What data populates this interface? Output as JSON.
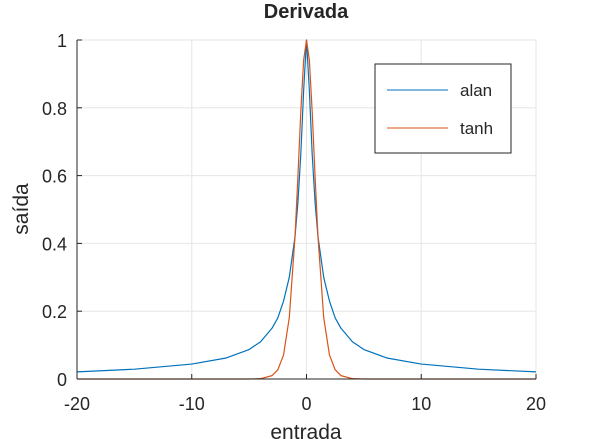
{
  "chart_data": {
    "type": "line",
    "title": "Derivada",
    "xlabel": "entrada",
    "ylabel": "saída",
    "xlim": [
      -20,
      20
    ],
    "ylim": [
      0,
      1
    ],
    "xticks": [
      -20,
      -10,
      0,
      10,
      20
    ],
    "yticks": [
      0,
      0.2,
      0.4,
      0.6,
      0.8,
      1
    ],
    "xtick_labels": [
      "-20",
      "-10",
      "0",
      "10",
      "20"
    ],
    "ytick_labels": [
      "0",
      "0.2",
      "0.4",
      "0.6",
      "0.8",
      "1"
    ],
    "grid": true,
    "legend_position": "top-right",
    "x": [
      -20,
      -15,
      -10,
      -7,
      -5,
      -4,
      -3,
      -2.5,
      -2,
      -1.5,
      -1,
      -0.75,
      -0.5,
      -0.25,
      0,
      0.25,
      0.5,
      0.75,
      1,
      1.5,
      2,
      2.5,
      3,
      4,
      5,
      7,
      10,
      15,
      20
    ],
    "series": [
      {
        "name": "alan",
        "color": "#0072BD",
        "values": [
          0.021,
          0.029,
          0.044,
          0.062,
          0.087,
          0.11,
          0.15,
          0.18,
          0.23,
          0.3,
          0.42,
          0.52,
          0.66,
          0.85,
          1,
          0.85,
          0.66,
          0.52,
          0.42,
          0.3,
          0.23,
          0.18,
          0.15,
          0.11,
          0.087,
          0.062,
          0.044,
          0.029,
          0.021
        ]
      },
      {
        "name": "tanh",
        "color": "#D95319",
        "values": [
          0,
          0,
          0,
          0,
          0,
          0.001,
          0.01,
          0.027,
          0.071,
          0.181,
          0.42,
          0.595,
          0.786,
          0.94,
          1,
          0.94,
          0.786,
          0.595,
          0.42,
          0.181,
          0.071,
          0.027,
          0.01,
          0.001,
          0,
          0,
          0,
          0,
          0
        ]
      }
    ]
  }
}
